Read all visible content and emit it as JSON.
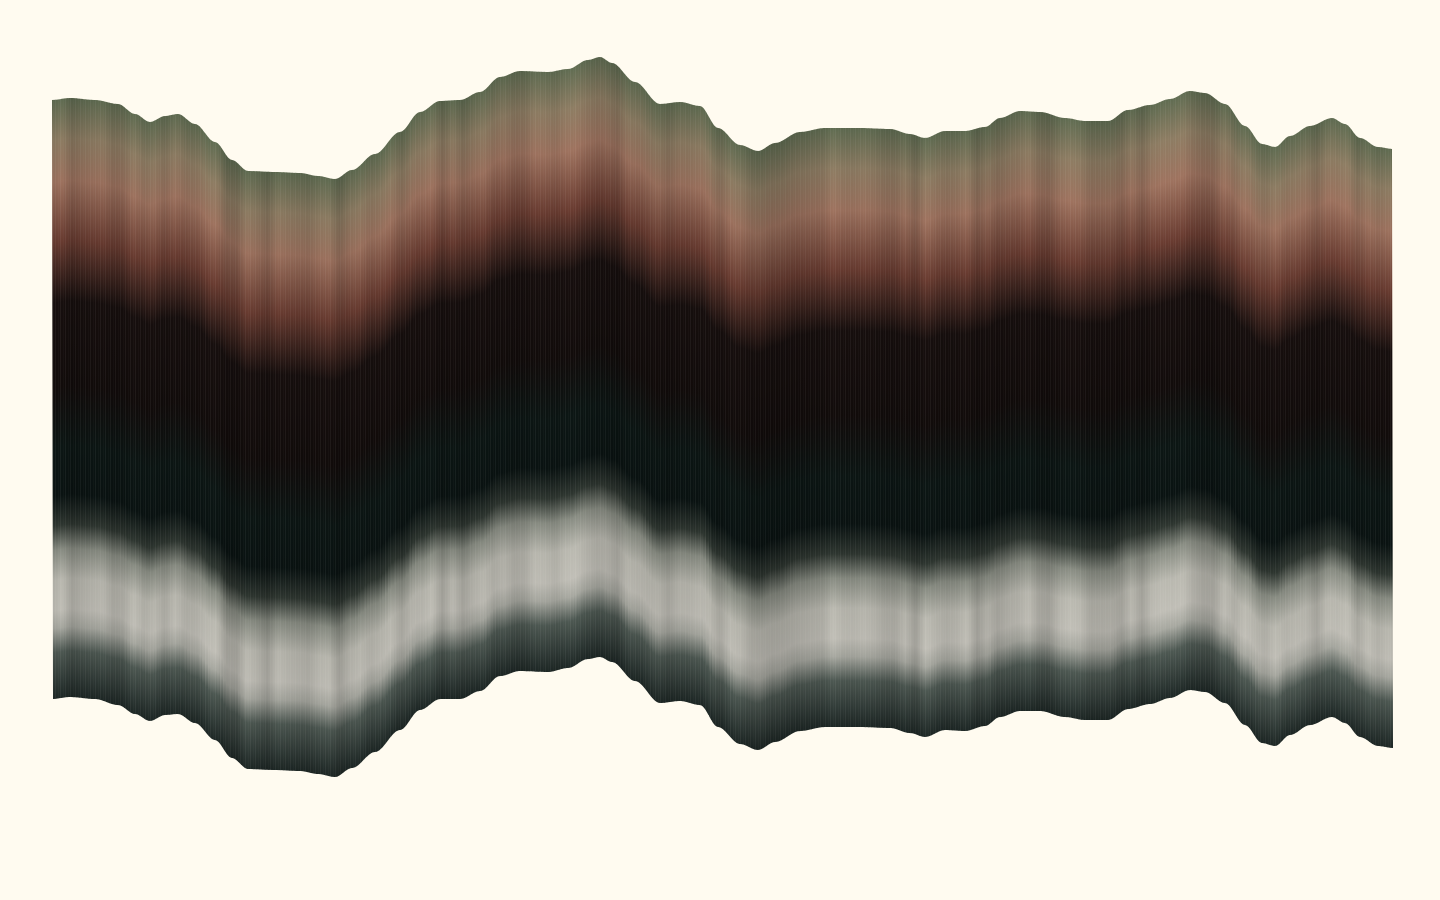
{
  "artwork": {
    "background_color": "#fffbf0",
    "band_palette": [
      {
        "stop": 0.0,
        "color": "#5f6d52"
      },
      {
        "stop": 0.07,
        "color": "#8f7e64"
      },
      {
        "stop": 0.14,
        "color": "#a07460"
      },
      {
        "stop": 0.24,
        "color": "#6a3c31"
      },
      {
        "stop": 0.34,
        "color": "#170f0e"
      },
      {
        "stop": 0.48,
        "color": "#120c0b"
      },
      {
        "stop": 0.58,
        "color": "#0c1614"
      },
      {
        "stop": 0.66,
        "color": "#0a1312"
      },
      {
        "stop": 0.71,
        "color": "#2f3731"
      },
      {
        "stop": 0.75,
        "color": "#8a8e84"
      },
      {
        "stop": 0.8,
        "color": "#bcbbb2"
      },
      {
        "stop": 0.85,
        "color": "#c2c0b8"
      },
      {
        "stop": 0.88,
        "color": "#a9aaa2"
      },
      {
        "stop": 0.92,
        "color": "#4e5953"
      },
      {
        "stop": 1.0,
        "color": "#1c2624"
      }
    ],
    "stripe_color": "#ffffff",
    "shading_color": "#000000"
  }
}
